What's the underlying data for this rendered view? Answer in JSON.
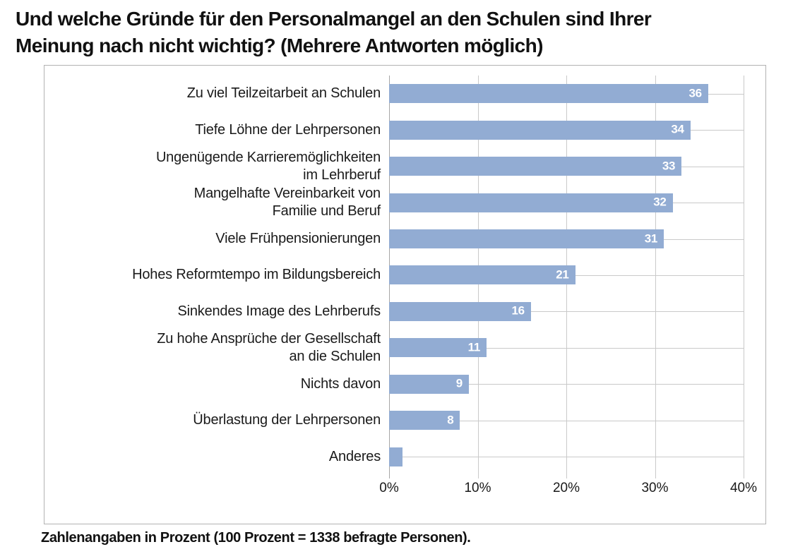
{
  "title": {
    "line1": "Und welche Gründe für den Personalmangel an den Schulen sind Ihrer",
    "line2": "Meinung nach nicht wichtig? (Mehrere Antworten möglich)"
  },
  "footnote": "Zahlenangaben in Prozent (100 Prozent = 1338 befragte Personen).",
  "chart_data": {
    "type": "bar",
    "orientation": "horizontal",
    "title": "Und welche Gründe für den Personalmangel an den Schulen sind Ihrer Meinung nach nicht wichtig? (Mehrere Antworten möglich)",
    "categories": [
      "Zu viel Teilzeitarbeit an Schulen",
      "Tiefe Löhne der Lehrpersonen",
      "Ungenügende Karrieremöglichkeiten im Lehrberuf",
      "Mangelhafte Vereinbarkeit von Familie und Beruf",
      "Viele Frühpensionierungen",
      "Hohes Reformtempo im Bildungsbereich",
      "Sinkendes Image des Lehrberufs",
      "Zu hohe Ansprüche der Gesellschaft an die Schulen",
      "Nichts davon",
      "Überlastung der Lehrpersonen",
      "Anderes"
    ],
    "category_display_lines": [
      [
        "Zu viel Teilzeitarbeit an Schulen"
      ],
      [
        "Tiefe Löhne der Lehrpersonen"
      ],
      [
        "Ungenügende Karrieremöglichkeiten",
        "im Lehrberuf"
      ],
      [
        "Mangelhafte Vereinbarkeit von",
        "Familie und Beruf"
      ],
      [
        "Viele Frühpensionierungen"
      ],
      [
        "Hohes Reformtempo im Bildungsbereich"
      ],
      [
        "Sinkendes Image des Lehrberufs"
      ],
      [
        "Zu hohe Ansprüche der Gesellschaft",
        "an die Schulen"
      ],
      [
        "Nichts davon"
      ],
      [
        "Überlastung der Lehrpersonen"
      ],
      [
        "Anderes"
      ]
    ],
    "values": [
      36,
      34,
      33,
      32,
      31,
      21,
      16,
      11,
      9,
      8,
      1.5
    ],
    "bar_labels": [
      "36",
      "34",
      "33",
      "32",
      "31",
      "21",
      "16",
      "11",
      "9",
      "8",
      ""
    ],
    "xlabel": "",
    "ylabel": "",
    "xlim": [
      0,
      40
    ],
    "x_tick_values": [
      0,
      10,
      20,
      30,
      40
    ],
    "x_tick_labels": [
      "0%",
      "10%",
      "20%",
      "30%",
      "40%"
    ],
    "unit": "percent",
    "legend": "none",
    "grid": "vertical-major",
    "colors": {
      "bar": "#92acd3",
      "bar_label_text": "#ffffff",
      "gridline": "#c9c9c9",
      "zero_axis": "#a6a6a6",
      "chart_border": "#b2b2b2",
      "text": "#1a1a1a"
    }
  }
}
